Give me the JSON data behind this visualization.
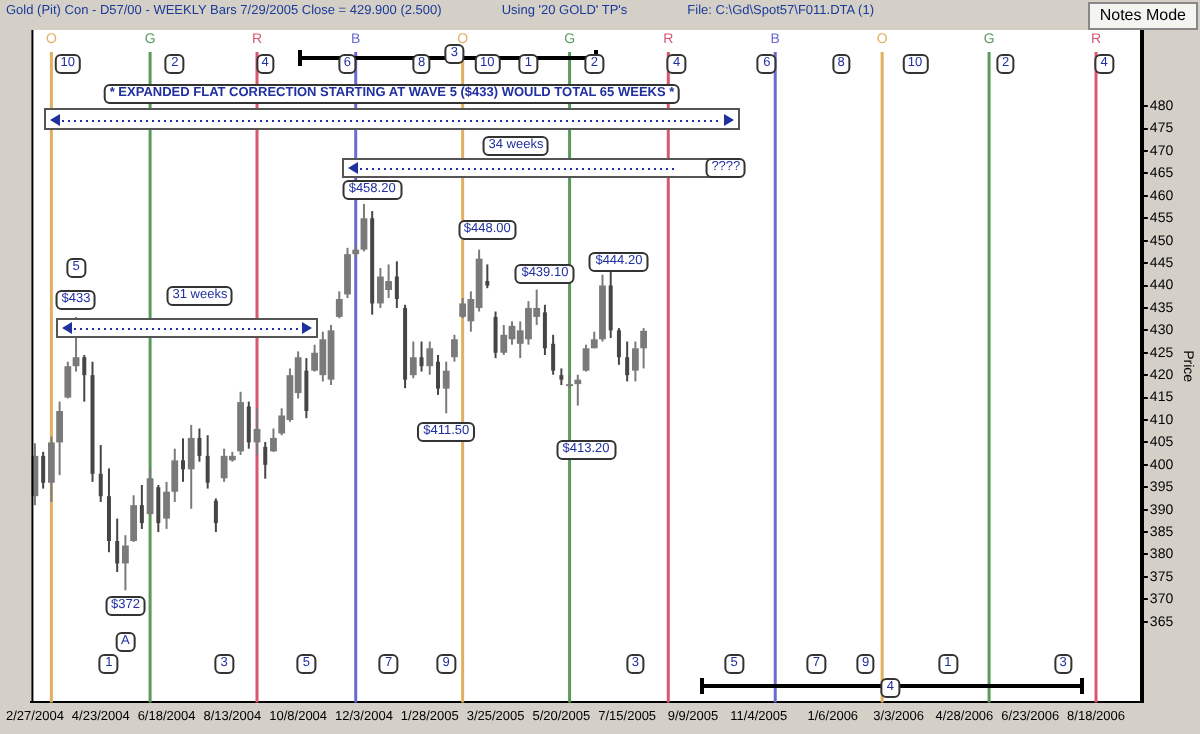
{
  "chart_data": {
    "type": "candlestick",
    "title": "Gold (Pit) Con - D57/00 - WEEKLY Bars 7/29/2005 Close = 429.900 (2.500)",
    "ylabel": "Price",
    "colors": [
      "#7a7a7a",
      "#454545",
      "#7a7a7a",
      "#7a7a7a",
      "#7a7a7a",
      "#7a7a7a",
      "#454545",
      "#454545",
      "#454545",
      "#454545",
      "#454545",
      "#7a7a7a",
      "#7a7a7a",
      "#454545",
      "#7a7a7a",
      "#454545",
      "#7a7a7a",
      "#7a7a7a",
      "#454545",
      "#7a7a7a",
      "#454545",
      "#454545",
      "#454545",
      "#7a7a7a",
      "#7a7a7a",
      "#7a7a7a",
      "#454545",
      "#7a7a7a",
      "#454545",
      "#7a7a7a",
      "#7a7a7a",
      "#7a7a7a",
      "#7a7a7a",
      "#454545",
      "#7a7a7a",
      "#7a7a7a",
      "#7a7a7a",
      "#7a7a7a",
      "#7a7a7a",
      "#7a7a7a",
      "#7a7a7a",
      "#454545",
      "#7a7a7a",
      "#7a7a7a",
      "#454545",
      "#454545",
      "#7a7a7a",
      "#454545",
      "#7a7a7a",
      "#454545",
      "#7a7a7a",
      "#7a7a7a",
      "#7a7a7a",
      "#7a7a7a",
      "#7a7a7a",
      "#454545",
      "#454545",
      "#7a7a7a",
      "#7a7a7a",
      "#7a7a7a",
      "#7a7a7a",
      "#7a7a7a",
      "#454545",
      "#454545",
      "#454545",
      "#7a7a7a",
      "#7a7a7a",
      "#7a7a7a",
      "#7a7a7a",
      "#7a7a7a",
      "#454545",
      "#454545",
      "#454545",
      "#7a7a7a",
      "#7a7a7a"
    ],
    "x": [
      "2004-02-27",
      "2004-03-05",
      "2004-03-12",
      "2004-03-19",
      "2004-03-26",
      "2004-04-02",
      "2004-04-09",
      "2004-04-16",
      "2004-04-23",
      "2004-04-30",
      "2004-05-07",
      "2004-05-14",
      "2004-05-21",
      "2004-05-28",
      "2004-06-04",
      "2004-06-11",
      "2004-06-18",
      "2004-06-25",
      "2004-07-02",
      "2004-07-09",
      "2004-07-16",
      "2004-07-23",
      "2004-07-30",
      "2004-08-06",
      "2004-08-13",
      "2004-08-20",
      "2004-08-27",
      "2004-09-03",
      "2004-09-10",
      "2004-09-17",
      "2004-09-24",
      "2004-10-01",
      "2004-10-08",
      "2004-10-15",
      "2004-10-22",
      "2004-10-29",
      "2004-11-05",
      "2004-11-12",
      "2004-11-19",
      "2004-11-26",
      "2004-12-03",
      "2004-12-10",
      "2004-12-17",
      "2004-12-24",
      "2004-12-31",
      "2005-01-07",
      "2005-01-14",
      "2005-01-21",
      "2005-01-28",
      "2005-02-04",
      "2005-02-11",
      "2005-02-18",
      "2005-02-25",
      "2005-03-04",
      "2005-03-11",
      "2005-03-18",
      "2005-03-25",
      "2005-04-01",
      "2005-04-08",
      "2005-04-15",
      "2005-04-22",
      "2005-04-29",
      "2005-05-06",
      "2005-05-13",
      "2005-05-20",
      "2005-05-27",
      "2005-06-03",
      "2005-06-10",
      "2005-06-17",
      "2005-06-24",
      "2005-07-01",
      "2005-07-08",
      "2005-07-15",
      "2005-07-22",
      "2005-07-29"
    ],
    "ohlc": [
      [
        393,
        404.8,
        391,
        402
      ],
      [
        402,
        402.9,
        394.7,
        396
      ],
      [
        396,
        406.3,
        391.7,
        405
      ],
      [
        405,
        414.1,
        397.7,
        412
      ],
      [
        415,
        423,
        414.8,
        422
      ],
      [
        422,
        433,
        420.8,
        424
      ],
      [
        424,
        424.5,
        414.1,
        420
      ],
      [
        420,
        423,
        396.2,
        398
      ],
      [
        398,
        404.4,
        391.7,
        393
      ],
      [
        393,
        399.2,
        380.5,
        383
      ],
      [
        383,
        388,
        376.1,
        378
      ],
      [
        378,
        384.3,
        372,
        382
      ],
      [
        383,
        393.2,
        382.8,
        391
      ],
      [
        391,
        395.5,
        385.7,
        387
      ],
      [
        389,
        399.2,
        388.7,
        397
      ],
      [
        395,
        395.5,
        385,
        387
      ],
      [
        388,
        396.2,
        385.7,
        394
      ],
      [
        394,
        403.6,
        391.7,
        401
      ],
      [
        401,
        405.9,
        396.2,
        399
      ],
      [
        399,
        408.9,
        390.2,
        406
      ],
      [
        406,
        408.1,
        400.7,
        402
      ],
      [
        402,
        406.6,
        394.7,
        396
      ],
      [
        392,
        392.5,
        385,
        387
      ],
      [
        397,
        403.6,
        396.2,
        402
      ],
      [
        401,
        402.9,
        400.7,
        402
      ],
      [
        403,
        416.3,
        402.2,
        414
      ],
      [
        413,
        414.1,
        403.6,
        405
      ],
      [
        405,
        412.6,
        402.2,
        408
      ],
      [
        404,
        405.1,
        396.9,
        400
      ],
      [
        403,
        408.1,
        402.9,
        406
      ],
      [
        407,
        412.6,
        406.6,
        411
      ],
      [
        410,
        421.5,
        409.6,
        420
      ],
      [
        416,
        425.3,
        414.8,
        424
      ],
      [
        421,
        423.8,
        410.4,
        412
      ],
      [
        421,
        426.8,
        420.8,
        425
      ],
      [
        420,
        429.7,
        418.6,
        428
      ],
      [
        419,
        431.2,
        417.8,
        430
      ],
      [
        433,
        438.7,
        432.7,
        437
      ],
      [
        438,
        448.4,
        437.2,
        447
      ],
      [
        447,
        449.1,
        446.2,
        448
      ],
      [
        448,
        458.2,
        447.6,
        455
      ],
      [
        455,
        456.6,
        433.5,
        436
      ],
      [
        436,
        443.9,
        435,
        442
      ],
      [
        439,
        444.7,
        437.2,
        441
      ],
      [
        442,
        445.4,
        435,
        437
      ],
      [
        435,
        435.7,
        417.1,
        419
      ],
      [
        420,
        427.5,
        419.3,
        424
      ],
      [
        424,
        427.5,
        420.8,
        422
      ],
      [
        422,
        427.5,
        420.1,
        426
      ],
      [
        423,
        424.5,
        415.6,
        417
      ],
      [
        417,
        423,
        411.5,
        421
      ],
      [
        424,
        429,
        423,
        428
      ],
      [
        433,
        437.2,
        432.7,
        436
      ],
      [
        432,
        438.7,
        429.7,
        437
      ],
      [
        435,
        448,
        434.2,
        446
      ],
      [
        441,
        444.7,
        439.4,
        440
      ],
      [
        433,
        434.2,
        423.8,
        425
      ],
      [
        425,
        431.2,
        424.5,
        429
      ],
      [
        428,
        432,
        426.8,
        431
      ],
      [
        427,
        432,
        423.8,
        430
      ],
      [
        428,
        436.5,
        426.8,
        435
      ],
      [
        433,
        439.1,
        431.2,
        435
      ],
      [
        434,
        435.7,
        424.5,
        426
      ],
      [
        427,
        429,
        420.1,
        421
      ],
      [
        420,
        421.5,
        417.8,
        419
      ],
      [
        418,
        420.1,
        417.1,
        418
      ],
      [
        418,
        420.1,
        413.2,
        419
      ],
      [
        421,
        426.8,
        420.8,
        426
      ],
      [
        426,
        429.7,
        426,
        428
      ],
      [
        428,
        442.4,
        427.5,
        440
      ],
      [
        440,
        444.2,
        428.3,
        430
      ],
      [
        430,
        430.5,
        422.3,
        424
      ],
      [
        424,
        427.5,
        418.6,
        420
      ],
      [
        421,
        427.5,
        418.6,
        426
      ],
      [
        426,
        430.5,
        421.5,
        429.9
      ]
    ],
    "xlim": [
      "2004-02-24",
      "2006-09-26"
    ],
    "xticks": [
      {
        "value": "2004-02-27",
        "label": "2/27/2004"
      },
      {
        "value": "2004-04-23",
        "label": "4/23/2004"
      },
      {
        "value": "2004-06-18",
        "label": "6/18/2004"
      },
      {
        "value": "2004-08-13",
        "label": "8/13/2004"
      },
      {
        "value": "2004-10-08",
        "label": "10/8/2004"
      },
      {
        "value": "2004-12-03",
        "label": "12/3/2004"
      },
      {
        "value": "2005-01-28",
        "label": "1/28/2005"
      },
      {
        "value": "2005-03-25",
        "label": "3/25/2005"
      },
      {
        "value": "2005-05-20",
        "label": "5/20/2005"
      },
      {
        "value": "2005-07-15",
        "label": "7/15/2005"
      },
      {
        "value": "2005-09-09",
        "label": "9/9/2005"
      },
      {
        "value": "2005-11-04",
        "label": "11/4/2005"
      },
      {
        "value": "2006-01-06",
        "label": "1/6/2006"
      },
      {
        "value": "2006-03-03",
        "label": "3/3/2006"
      },
      {
        "value": "2006-04-28",
        "label": "4/28/2006"
      },
      {
        "value": "2006-06-23",
        "label": "6/23/2006"
      },
      {
        "value": "2006-08-18",
        "label": "8/18/2006"
      }
    ],
    "ylim": [
      347,
      497
    ],
    "yticks": [
      365,
      370,
      375,
      380,
      385,
      390,
      395,
      400,
      405,
      410,
      415,
      420,
      425,
      430,
      435,
      440,
      445,
      450,
      455,
      460,
      465,
      470,
      475,
      480
    ],
    "ref_lines": [
      {
        "axis": "x",
        "value": "2004-03-12",
        "label": "O",
        "color": "#e0b060"
      },
      {
        "axis": "x",
        "value": "2004-06-04",
        "label": "G",
        "color": "#5a9a5a"
      },
      {
        "axis": "x",
        "value": "2004-09-03",
        "label": "R",
        "color": "#d85870"
      },
      {
        "axis": "x",
        "value": "2004-11-26",
        "label": "B",
        "color": "#6a6ad0"
      },
      {
        "axis": "x",
        "value": "2005-02-25",
        "label": "O",
        "color": "#e0b060"
      },
      {
        "axis": "x",
        "value": "2005-05-27",
        "label": "G",
        "color": "#5a9a5a"
      },
      {
        "axis": "x",
        "value": "2005-08-19",
        "label": "R",
        "color": "#d85870"
      },
      {
        "axis": "x",
        "value": "2005-11-18",
        "label": "B",
        "color": "#6a6ad0"
      },
      {
        "axis": "x",
        "value": "2006-02-17",
        "label": "O",
        "color": "#e0b060"
      },
      {
        "axis": "x",
        "value": "2006-05-19",
        "label": "G",
        "color": "#5a9a5a"
      },
      {
        "axis": "x",
        "value": "2006-08-18",
        "label": "R",
        "color": "#d85870"
      }
    ],
    "annotations": [
      "Using '20 GOLD' TP's",
      "File: C:\\Gd\\Spot57\\F011.DTA (1)",
      "Notes Mode",
      "31 weeks",
      "34 weeks",
      "***  EXPANDED FLAT CORRECTION STARTING AT WAVE 5 ($433) WOULD TOTAL 65 WEEKS  ***",
      {
        "text": "10",
        "x": "2004-03-26",
        "y": 489.3
      },
      {
        "text": "2",
        "x": "2004-06-25",
        "y": 489.3
      },
      {
        "text": "4",
        "x": "2004-09-10",
        "y": 489.3
      },
      {
        "text": "6",
        "x": "2004-11-19",
        "y": 489.3
      },
      {
        "text": "8",
        "x": "2005-01-21",
        "y": 489.3
      },
      {
        "text": "10",
        "x": "2005-03-18",
        "y": 489.3
      },
      {
        "text": "1",
        "x": "2005-04-22",
        "y": 489.3
      },
      {
        "text": "2",
        "x": "2005-06-17",
        "y": 489.3
      },
      {
        "text": "4",
        "x": "2005-08-26",
        "y": 489.3
      },
      {
        "text": "6",
        "x": "2005-11-11",
        "y": 489.3
      },
      {
        "text": "8",
        "x": "2006-01-13",
        "y": 489.3
      },
      {
        "text": "10",
        "x": "2006-03-17",
        "y": 489.3
      },
      {
        "text": "2",
        "x": "2006-06-02",
        "y": 489.3
      },
      {
        "text": "4",
        "x": "2006-08-25",
        "y": 489.3
      },
      {
        "text": "1",
        "x": "2004-04-30",
        "y": 355.7
      },
      {
        "text": "3",
        "x": "2004-08-06",
        "y": 355.7
      },
      {
        "text": "5",
        "x": "2004-10-15",
        "y": 355.7
      },
      {
        "text": "7",
        "x": "2004-12-24",
        "y": 355.7
      },
      {
        "text": "9",
        "x": "2005-02-11",
        "y": 355.7
      },
      {
        "text": "3",
        "x": "2005-07-22",
        "y": 355.7
      },
      {
        "text": "5",
        "x": "2005-10-14",
        "y": 355.7
      },
      {
        "text": "7",
        "x": "2005-12-23",
        "y": 355.7
      },
      {
        "text": "9",
        "x": "2006-02-03",
        "y": 355.7
      },
      {
        "text": "1",
        "x": "2006-04-14",
        "y": 355.7
      },
      {
        "text": "3",
        "x": "2006-07-21",
        "y": 355.7
      },
      {
        "text": "3",
        "x": "2005-02-18",
        "y": 491.5
      },
      {
        "text": "4",
        "x": "2006-02-24",
        "y": 350.3
      },
      {
        "text": "A",
        "x": "2004-05-14",
        "y": 360.4
      },
      {
        "text": "5",
        "x": "2004-04-02",
        "y": 444
      },
      {
        "text": "$433",
        "x": "2004-04-02",
        "y": 436.8
      },
      {
        "text": "$372",
        "x": "2004-05-14",
        "y": 368.5
      },
      {
        "text": "$458.20",
        "x": "2004-12-10",
        "y": 461.4
      },
      {
        "text": "$448.00",
        "x": "2005-03-18",
        "y": 452.6
      },
      {
        "text": "$439.10",
        "x": "2005-05-06",
        "y": 442.4
      },
      {
        "text": "$411.50",
        "x": "2005-02-11",
        "y": 407.2
      },
      {
        "text": "$413.20",
        "x": "2005-06-10",
        "y": 403.4
      },
      {
        "text": "$444.20",
        "x": "2005-07-08",
        "y": 445.1
      },
      {
        "text": "????",
        "x": "2005-10-07",
        "y": 466.2
      }
    ]
  }
}
